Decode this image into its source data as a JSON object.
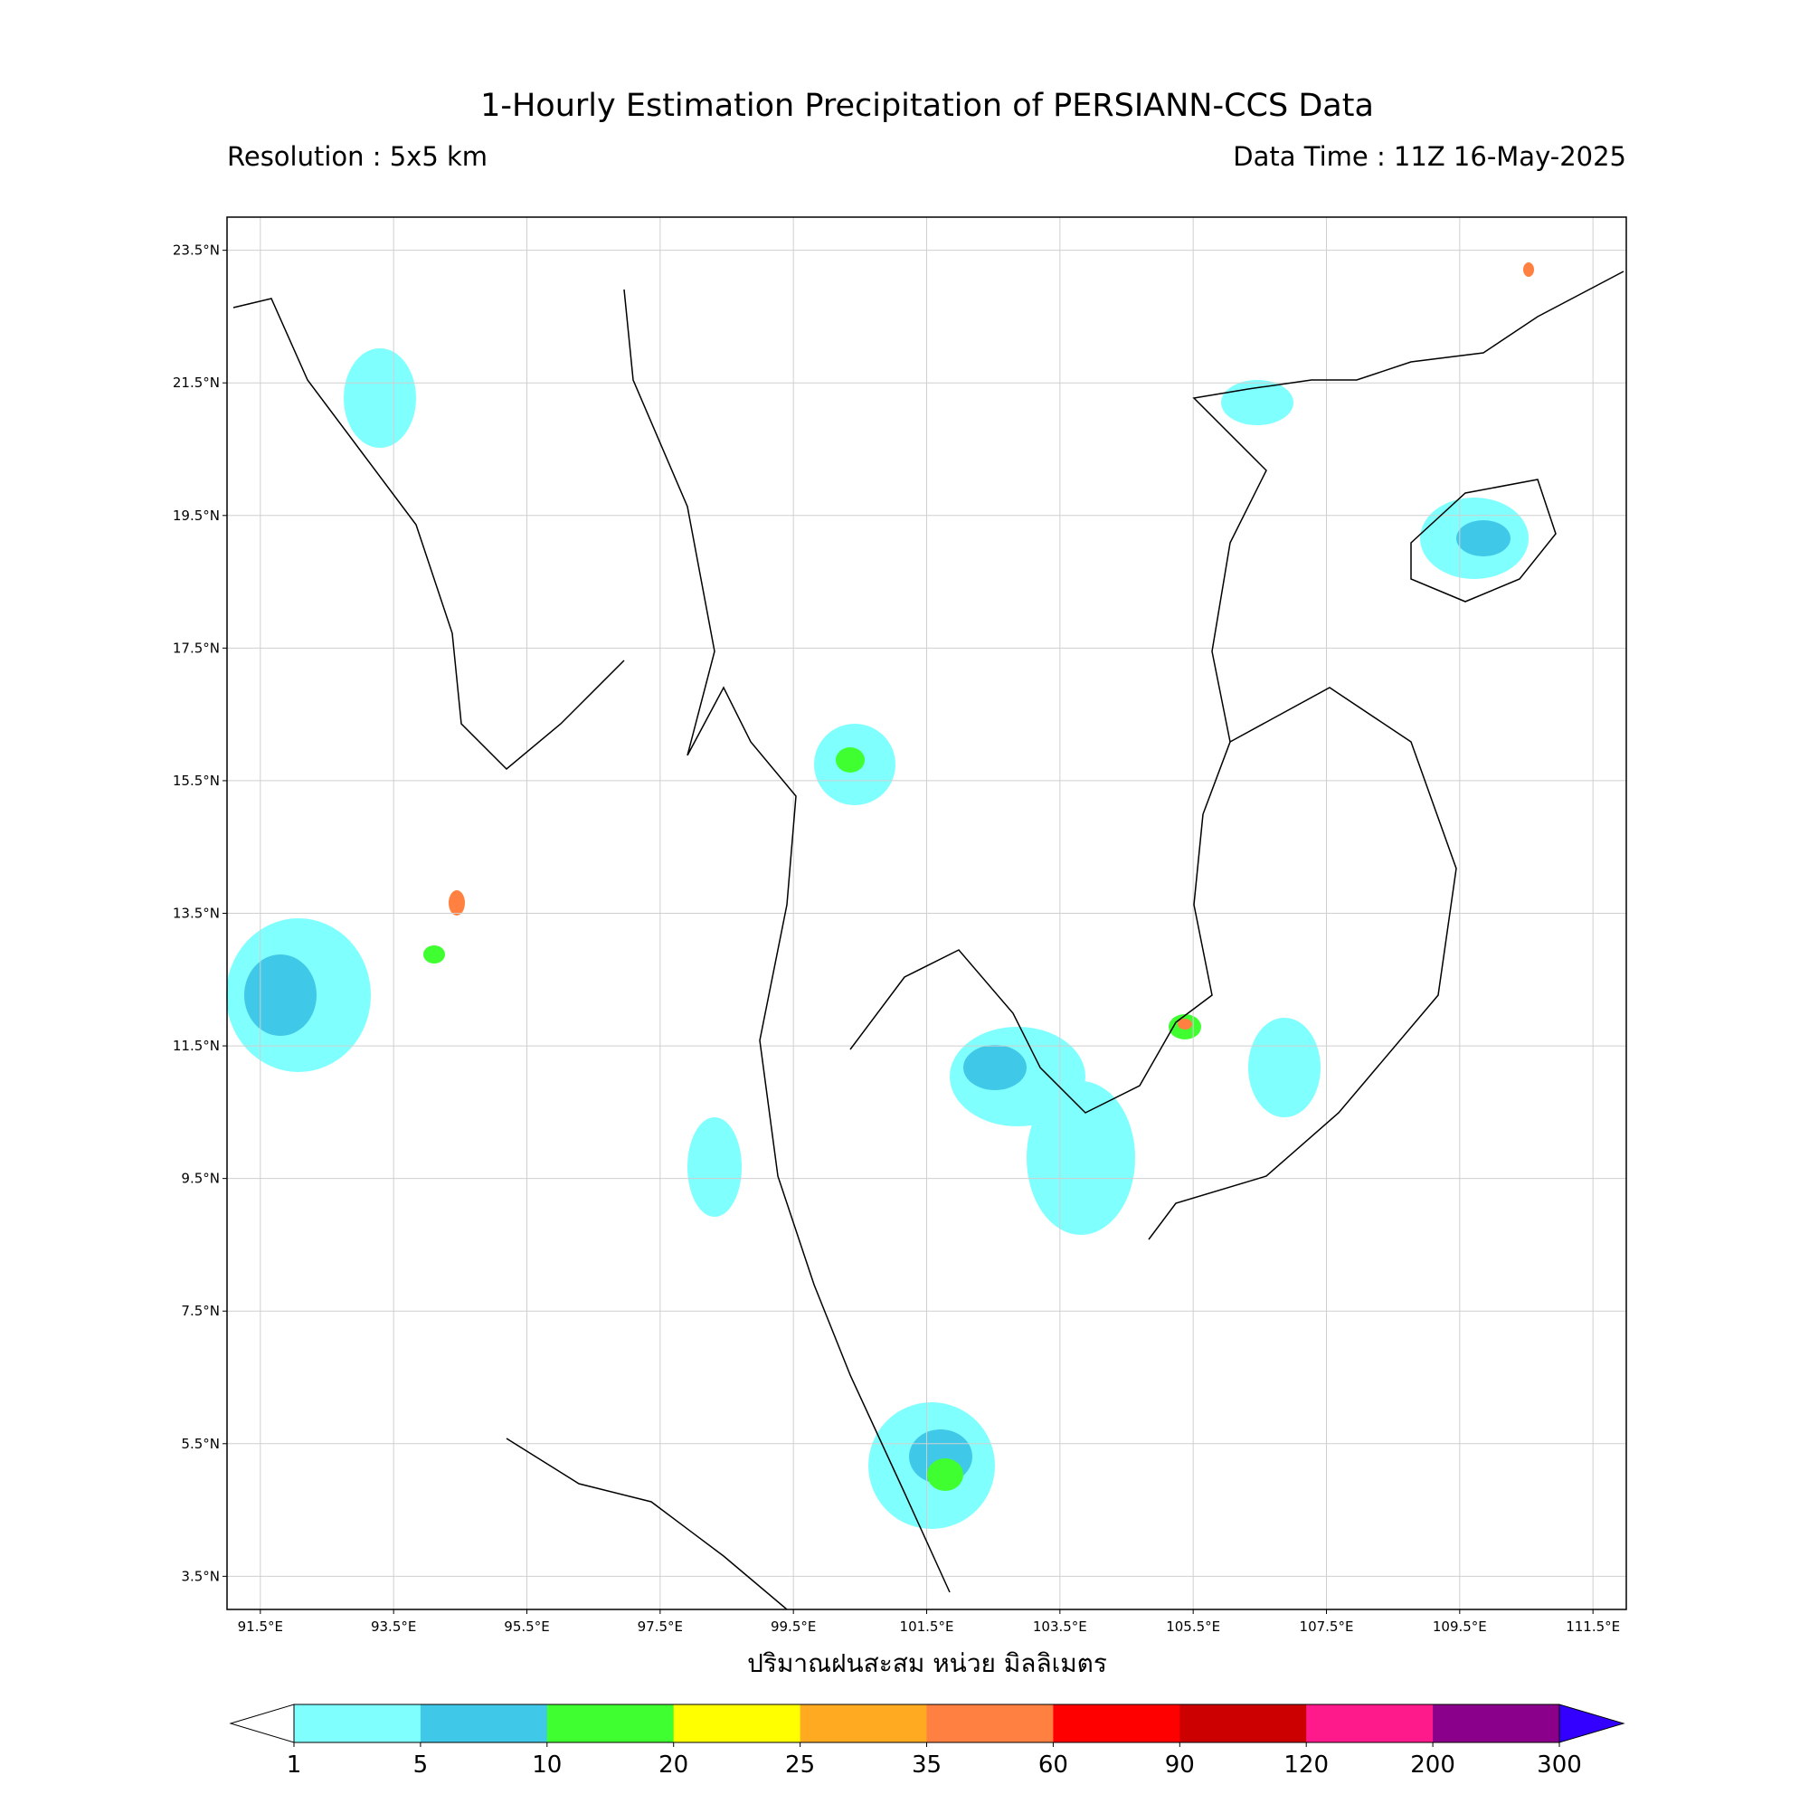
{
  "title": "1-Hourly Estimation Precipitation of PERSIANN-CCS Data",
  "resolution": "Resolution : 5x5 km",
  "data_time": "Data Time : 11Z 16-May-2025",
  "x_axis_label": "ปริมาณฝนสะสม หน่วย มิลลิเมตร",
  "xlim": [
    91,
    112
  ],
  "ylim": [
    3,
    24
  ],
  "grid": true,
  "lon_ticks": [
    {
      "value": 91.5,
      "label": "91.5°E"
    },
    {
      "value": 93.5,
      "label": "93.5°E"
    },
    {
      "value": 95.5,
      "label": "95.5°E"
    },
    {
      "value": 97.5,
      "label": "97.5°E"
    },
    {
      "value": 99.5,
      "label": "99.5°E"
    },
    {
      "value": 101.5,
      "label": "101.5°E"
    },
    {
      "value": 103.5,
      "label": "103.5°E"
    },
    {
      "value": 105.5,
      "label": "105.5°E"
    },
    {
      "value": 107.5,
      "label": "107.5°E"
    },
    {
      "value": 109.5,
      "label": "109.5°E"
    },
    {
      "value": 111.5,
      "label": "111.5°E"
    }
  ],
  "lat_ticks": [
    {
      "value": 23.5,
      "label": "23.5°N"
    },
    {
      "value": 21.5,
      "label": "21.5°N"
    },
    {
      "value": 19.5,
      "label": "19.5°N"
    },
    {
      "value": 17.5,
      "label": "17.5°N"
    },
    {
      "value": 15.5,
      "label": "15.5°N"
    },
    {
      "value": 13.5,
      "label": "13.5°N"
    },
    {
      "value": 11.5,
      "label": "11.5°N"
    },
    {
      "value": 9.5,
      "label": "9.5°N"
    },
    {
      "value": 7.5,
      "label": "7.5°N"
    },
    {
      "value": 5.5,
      "label": "5.5°N"
    },
    {
      "value": 3.5,
      "label": "3.5°N"
    }
  ],
  "colorbar": {
    "levels": [
      1,
      5,
      10,
      20,
      25,
      35,
      60,
      90,
      120,
      200,
      300
    ],
    "colors": [
      "#80ffff",
      "#40c8e8",
      "#40ff30",
      "#ffff00",
      "#ffaa20",
      "#ff8040",
      "#ff0000",
      "#cc0000",
      "#ff1a8c",
      "#8b008b"
    ],
    "under_color": "#ffffff",
    "over_color": "#3300ff"
  }
}
